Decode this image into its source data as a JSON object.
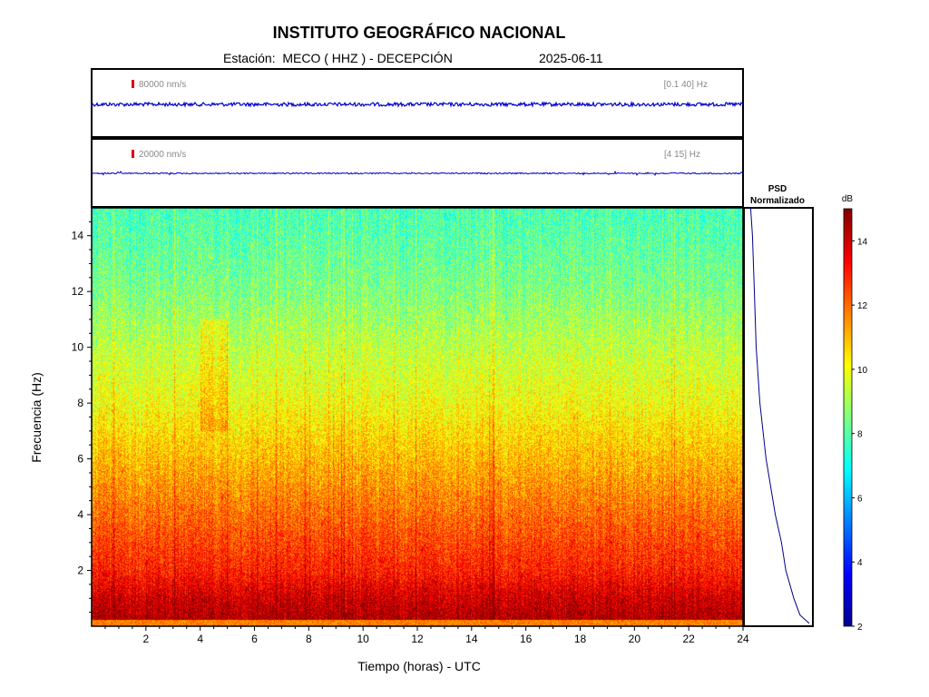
{
  "header": {
    "title": "INSTITUTO GEOGRÁFICO NACIONAL",
    "station_line": "Estación:  MECO ( HHZ ) - DECEPCIÓN",
    "date": "2025-06-11"
  },
  "chart_data": [
    {
      "type": "line",
      "panel": "seismogram-broadband",
      "scale_label": "80000 nm/s",
      "band_label": "[0.1 40] Hz",
      "x_range_hours": [
        0,
        24
      ],
      "description_values": "continuous low-amplitude noise trace"
    },
    {
      "type": "line",
      "panel": "seismogram-filtered",
      "scale_label": "20000 nm/s",
      "band_label": "[4 15] Hz",
      "x_range_hours": [
        0,
        24
      ]
    },
    {
      "type": "heatmap",
      "panel": "spectrogram",
      "xlabel": "Tiempo (horas) - UTC",
      "ylabel": "Frecuencia  (Hz)",
      "xlim": [
        0,
        24
      ],
      "ylim": [
        0,
        15
      ],
      "xticks": [
        2,
        4,
        6,
        8,
        10,
        12,
        14,
        16,
        18,
        20,
        22,
        24
      ],
      "yticks": [
        2,
        4,
        6,
        8,
        10,
        12,
        14
      ],
      "colormap": "jet",
      "approx_db_by_frequency": [
        {
          "freq": 0.2,
          "db": 14.5
        },
        {
          "freq": 1,
          "db": 14
        },
        {
          "freq": 2,
          "db": 13
        },
        {
          "freq": 4,
          "db": 12
        },
        {
          "freq": 6,
          "db": 11
        },
        {
          "freq": 8,
          "db": 10
        },
        {
          "freq": 10,
          "db": 9.3
        },
        {
          "freq": 12,
          "db": 8.5
        },
        {
          "freq": 14,
          "db": 8
        },
        {
          "freq": 15,
          "db": 7.8
        }
      ]
    },
    {
      "type": "line",
      "panel": "psd",
      "title_line1": "PSD",
      "title_line2": "Normalizado",
      "y_range_hz": [
        0,
        15
      ],
      "points": [
        {
          "freq": 15,
          "psd": 0.05
        },
        {
          "freq": 14,
          "psd": 0.08
        },
        {
          "freq": 12,
          "psd": 0.11
        },
        {
          "freq": 10,
          "psd": 0.14
        },
        {
          "freq": 8,
          "psd": 0.2
        },
        {
          "freq": 6,
          "psd": 0.3
        },
        {
          "freq": 4,
          "psd": 0.45
        },
        {
          "freq": 3,
          "psd": 0.55
        },
        {
          "freq": 2,
          "psd": 0.62
        },
        {
          "freq": 1,
          "psd": 0.75
        },
        {
          "freq": 0.4,
          "psd": 0.85
        },
        {
          "freq": 0.1,
          "psd": 1.0
        }
      ]
    },
    {
      "type": "colorbar",
      "panel": "colorbar",
      "label": "dB",
      "range": [
        2,
        15
      ],
      "ticks": [
        2,
        4,
        6,
        8,
        10,
        12,
        14
      ]
    }
  ]
}
